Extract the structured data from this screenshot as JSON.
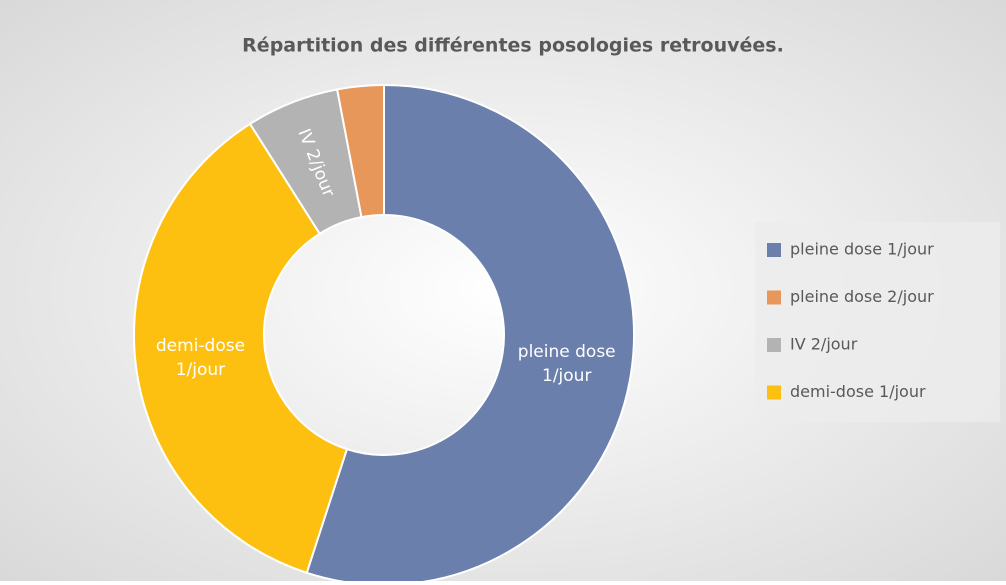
{
  "chart_data": {
    "type": "donut",
    "title": "Répartition des différentes posologies retrouvées.",
    "categories": [
      "pleine dose 1/jour",
      "pleine dose 2/jour",
      "IV 2/jour",
      "demi-dose 1/jour"
    ],
    "values": [
      55,
      3,
      6,
      36
    ],
    "colors": [
      "#6a7fab",
      "#e8975a",
      "#b3b3b3",
      "#fdc010"
    ],
    "data_labels": [
      true,
      false,
      true,
      true
    ],
    "legend": "right"
  }
}
